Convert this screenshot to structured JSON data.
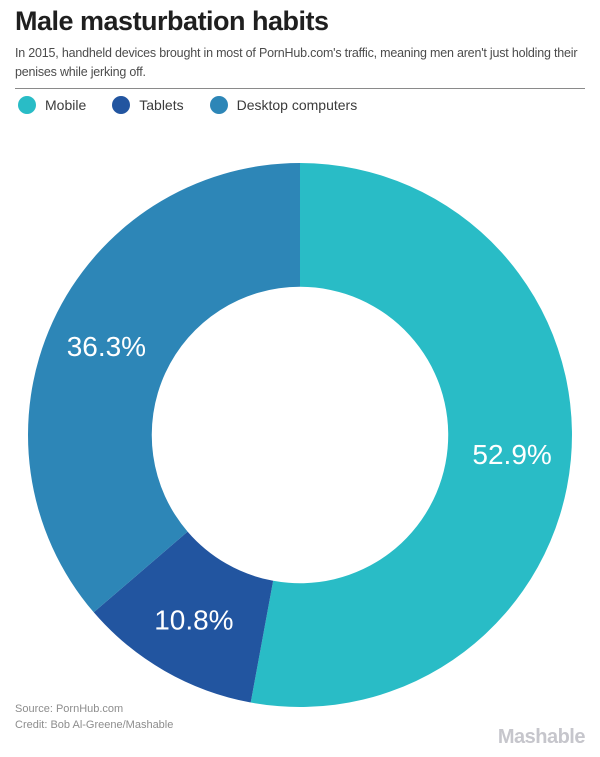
{
  "page": {
    "title": "Male masturbation habits",
    "subtitle": "In 2015, handheld devices brought in most of PornHub.com's traffic, meaning men aren't just holding their penises while jerking off.",
    "source_line1": "Source: PornHub.com",
    "source_line2": "Credit: Bob Al-Greene/Mashable",
    "brand": "Mashable"
  },
  "colors": {
    "mobile": "#29bcc6",
    "tablets": "#2255a0",
    "desktop": "#2d86b7",
    "segment_label_text": "#ffffff"
  },
  "legend": [
    {
      "label": "Mobile",
      "color": "#29bcc6"
    },
    {
      "label": "Tablets",
      "color": "#2255a0"
    },
    {
      "label": "Desktop computers",
      "color": "#2d86b7"
    }
  ],
  "chart_data": {
    "type": "pie",
    "subtype": "donut",
    "title": "Male masturbation habits",
    "categories": [
      "Mobile",
      "Tablets",
      "Desktop computers"
    ],
    "values": [
      52.9,
      10.8,
      36.3
    ],
    "labels": [
      "52.9%",
      "10.8%",
      "36.3%"
    ],
    "colors": [
      "#29bcc6",
      "#2255a0",
      "#2d86b7"
    ],
    "unit": "%",
    "start_angle_deg": 0,
    "direction": "clockwise",
    "inner_radius_ratio": 0.545,
    "legend_position": "top",
    "data_labels": "inside-white"
  }
}
